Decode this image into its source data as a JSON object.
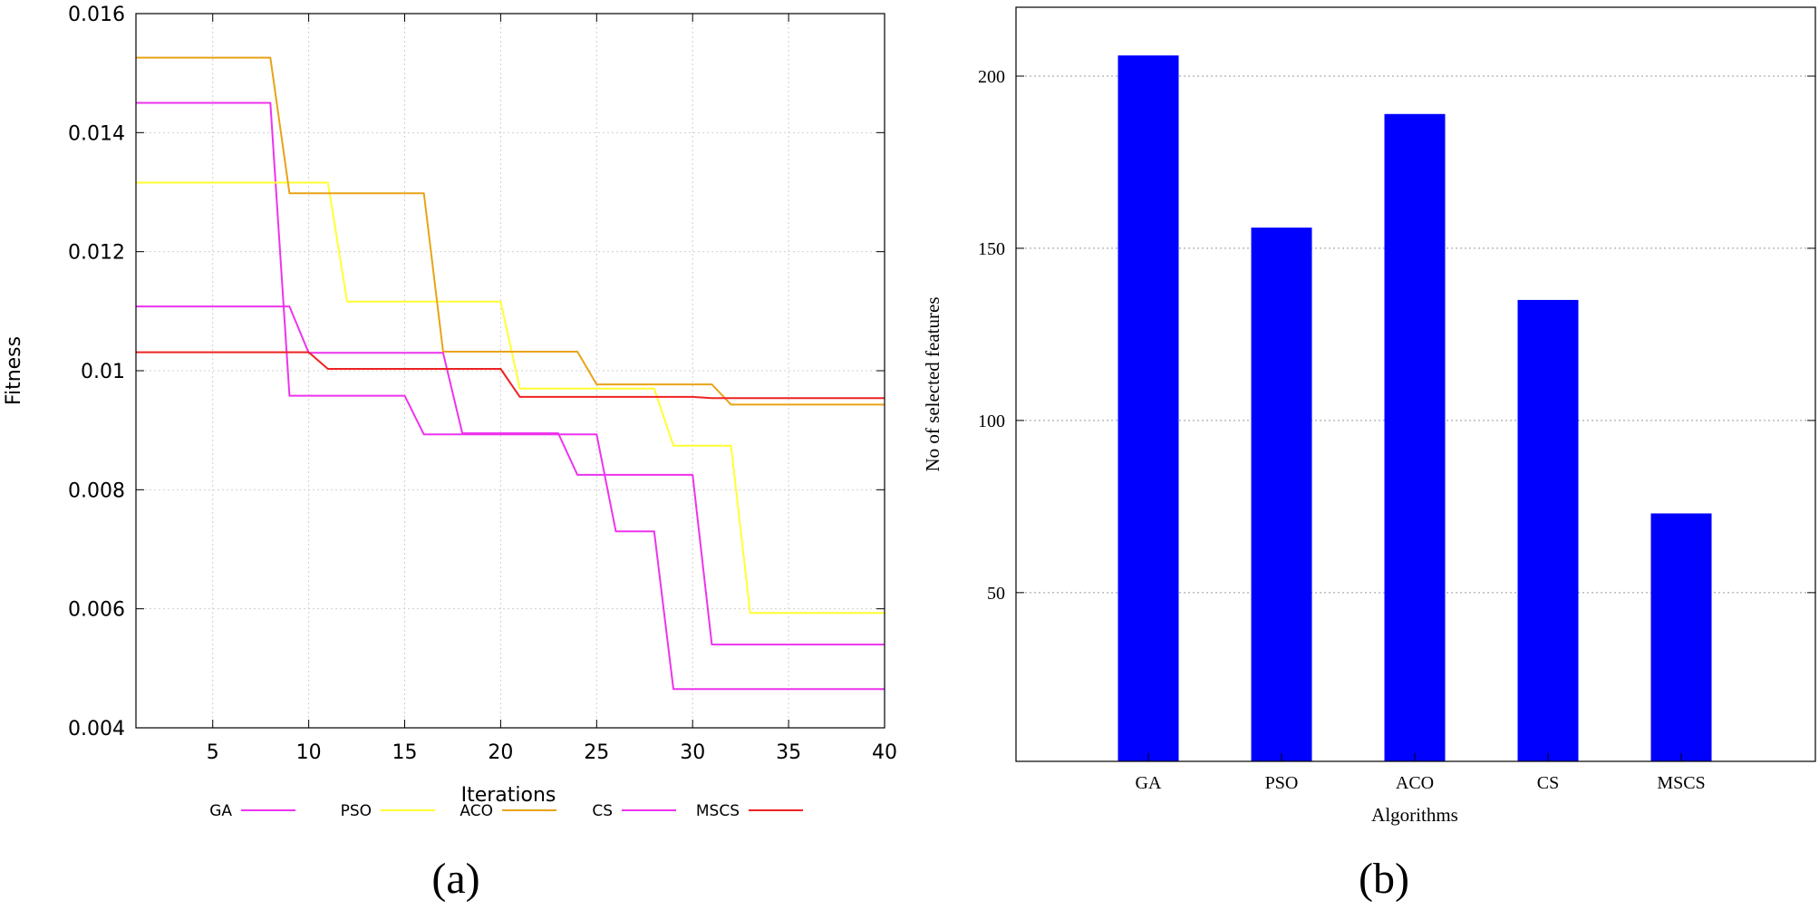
{
  "chart_data": [
    {
      "type": "line",
      "panel_label": "(a)",
      "xlabel": "Iterations",
      "ylabel": "Fitness",
      "xlim": [
        1,
        40
      ],
      "ylim": [
        0.004,
        0.016
      ],
      "xticks": [
        5,
        10,
        15,
        20,
        25,
        30,
        35,
        40
      ],
      "yticks": [
        0.004,
        0.006,
        0.008,
        0.01,
        0.012,
        0.014,
        0.016
      ],
      "ytick_labels": [
        "0.004",
        "0.006",
        "0.008",
        "0.01",
        "0.012",
        "0.014",
        "0.016"
      ],
      "grid": true,
      "legend_position": "bottom",
      "series": [
        {
          "name": "GA",
          "color": "#ee33ee",
          "steps": [
            [
              1,
              0.0145
            ],
            [
              8,
              0.0145
            ],
            [
              9,
              0.00958
            ],
            [
              15,
              0.00958
            ],
            [
              16,
              0.00893
            ],
            [
              24,
              0.00893
            ],
            [
              25,
              0.00893
            ],
            [
              26,
              0.0073
            ],
            [
              28,
              0.0073
            ],
            [
              29,
              0.00465
            ],
            [
              40,
              0.00465
            ]
          ]
        },
        {
          "name": "PSO",
          "color": "#ffff33",
          "steps": [
            [
              1,
              0.01316
            ],
            [
              11,
              0.01316
            ],
            [
              12,
              0.01116
            ],
            [
              20,
              0.01116
            ],
            [
              21,
              0.0097
            ],
            [
              28,
              0.0097
            ],
            [
              29,
              0.00874
            ],
            [
              32,
              0.00874
            ],
            [
              33,
              0.00593
            ],
            [
              40,
              0.00593
            ]
          ]
        },
        {
          "name": "ACO",
          "color": "#e8a317",
          "steps": [
            [
              1,
              0.01526
            ],
            [
              8,
              0.01526
            ],
            [
              9,
              0.01298
            ],
            [
              16,
              0.01298
            ],
            [
              17,
              0.01032
            ],
            [
              24,
              0.01032
            ],
            [
              25,
              0.00977
            ],
            [
              31,
              0.00977
            ],
            [
              32,
              0.00943
            ],
            [
              40,
              0.00943
            ]
          ]
        },
        {
          "name": "CS",
          "color": "#ee33ee",
          "steps": [
            [
              1,
              0.01108
            ],
            [
              9,
              0.01108
            ],
            [
              10,
              0.0103
            ],
            [
              17,
              0.0103
            ],
            [
              18,
              0.00895
            ],
            [
              23,
              0.00895
            ],
            [
              24,
              0.00825
            ],
            [
              30,
              0.00825
            ],
            [
              31,
              0.0054
            ],
            [
              40,
              0.0054
            ]
          ]
        },
        {
          "name": "MSCS",
          "color": "#ee2222",
          "steps": [
            [
              1,
              0.01031
            ],
            [
              10,
              0.01031
            ],
            [
              11,
              0.01003
            ],
            [
              20,
              0.01003
            ],
            [
              21,
              0.00956
            ],
            [
              30,
              0.00956
            ],
            [
              31,
              0.00954
            ],
            [
              40,
              0.00954
            ]
          ]
        }
      ]
    },
    {
      "type": "bar",
      "panel_label": "(b)",
      "xlabel": "Algorithms",
      "ylabel": "No of selected features",
      "categories": [
        "GA",
        "PSO",
        "ACO",
        "CS",
        "MSCS"
      ],
      "values": [
        206,
        156,
        189,
        135,
        73
      ],
      "ylim": [
        1,
        220
      ],
      "yticks": [
        50,
        100,
        150,
        200
      ],
      "grid": true,
      "bar_color": "#0000ff"
    }
  ]
}
